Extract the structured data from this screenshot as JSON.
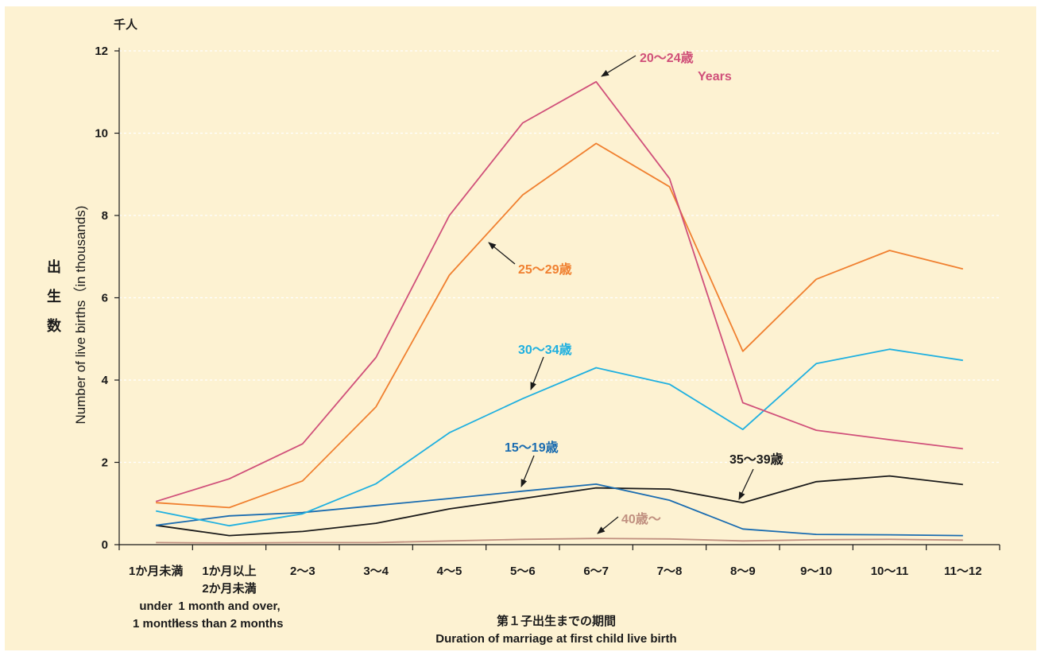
{
  "chart_data": {
    "type": "line",
    "unit_label": "千人",
    "ylabel_jp": "出 生 数",
    "ylabel_en": "Number of live births（in thousands)",
    "xlabel_jp": "第１子出生までの期間",
    "xlabel_en": "Duration of marriage at first child live birth",
    "ylim": [
      0,
      12
    ],
    "yticks": [
      "0",
      "2",
      "4",
      "6",
      "8",
      "10",
      "12"
    ],
    "grid": "horizontal dashed",
    "categories": [
      [
        "1か月未満",
        "",
        "under",
        "1 month"
      ],
      [
        "1か月以上",
        "2か月未満",
        "1 month and over,",
        "less than 2 months"
      ],
      [
        "2〜3"
      ],
      [
        "3〜4"
      ],
      [
        "4〜5"
      ],
      [
        "5〜6"
      ],
      [
        "6〜7"
      ],
      [
        "7〜8"
      ],
      [
        "8〜9"
      ],
      [
        "9〜10"
      ],
      [
        "10〜11"
      ],
      [
        "11〜12"
      ]
    ],
    "series": [
      {
        "name": "20〜24歳",
        "name_sub": "Years",
        "color": "#d0507a",
        "values": [
          1.05,
          1.6,
          2.45,
          4.55,
          8.0,
          10.25,
          11.25,
          8.9,
          3.45,
          2.78,
          2.55,
          2.33
        ]
      },
      {
        "name": "25〜29歳",
        "color": "#f08030",
        "values": [
          1.02,
          0.9,
          1.55,
          3.35,
          6.55,
          8.5,
          9.75,
          8.7,
          4.7,
          6.45,
          7.15,
          6.7
        ]
      },
      {
        "name": "30〜34歳",
        "color": "#1fb0e0",
        "values": [
          0.82,
          0.46,
          0.75,
          1.48,
          2.72,
          3.55,
          4.3,
          3.9,
          2.8,
          4.4,
          4.75,
          4.48
        ]
      },
      {
        "name": "15〜19歳",
        "color": "#1a6cb0",
        "values": [
          0.47,
          0.7,
          0.78,
          0.95,
          1.12,
          1.3,
          1.47,
          1.08,
          0.38,
          0.25,
          0.24,
          0.22
        ]
      },
      {
        "name": "35〜39歳",
        "color": "#1a1a1a",
        "values": [
          0.47,
          0.22,
          0.32,
          0.52,
          0.87,
          1.12,
          1.38,
          1.35,
          1.02,
          1.53,
          1.67,
          1.46
        ]
      },
      {
        "name": "40歳〜",
        "color": "#c09080",
        "values": [
          0.05,
          0.04,
          0.05,
          0.05,
          0.09,
          0.13,
          0.15,
          0.14,
          0.09,
          0.12,
          0.13,
          0.11
        ]
      }
    ]
  }
}
